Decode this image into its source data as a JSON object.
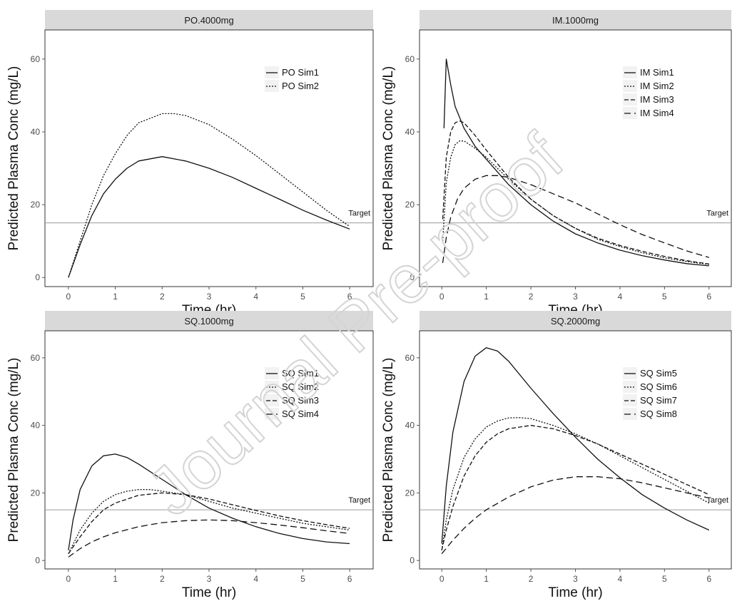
{
  "chart_data": [
    {
      "type": "line",
      "panel_title": "PO.4000mg",
      "xlabel": "Time (hr)",
      "ylabel": "Predicted Plasma Conc (mg/L)",
      "xlim": [
        -0.5,
        6.5
      ],
      "ylim": [
        -2.5,
        68
      ],
      "xticks": [
        0,
        1,
        2,
        3,
        4,
        5,
        6
      ],
      "yticks": [
        0,
        20,
        40,
        60
      ],
      "reference_line": {
        "value": 15,
        "label": "Target"
      },
      "legend_position": "right",
      "series": [
        {
          "name": "PO Sim1",
          "dash": "solid",
          "x": [
            0,
            0.25,
            0.5,
            0.75,
            1,
            1.25,
            1.5,
            2,
            2.5,
            3,
            3.5,
            4,
            4.5,
            5,
            5.5,
            6
          ],
          "y": [
            0,
            9,
            17,
            23,
            27,
            30,
            32,
            33.2,
            32,
            30,
            27.5,
            24.5,
            21.5,
            18.5,
            15.8,
            13.3
          ]
        },
        {
          "name": "PO Sim2",
          "dash": "dotted",
          "x": [
            0,
            0.25,
            0.5,
            0.75,
            1,
            1.25,
            1.5,
            2,
            2.25,
            2.5,
            3,
            3.5,
            4,
            4.5,
            5,
            5.5,
            6
          ],
          "y": [
            0,
            10,
            20,
            28,
            34,
            39,
            42.5,
            45,
            45,
            44.5,
            42,
            38,
            33.5,
            28.5,
            23.5,
            18.5,
            14
          ]
        }
      ]
    },
    {
      "type": "line",
      "panel_title": "IM.1000mg",
      "xlabel": "Time (hr)",
      "ylabel": "Predicted Plasma Conc (mg/L)",
      "xlim": [
        -0.5,
        6.5
      ],
      "ylim": [
        -2.5,
        68
      ],
      "xticks": [
        0,
        1,
        2,
        3,
        4,
        5,
        6
      ],
      "yticks": [
        0,
        20,
        40,
        60
      ],
      "reference_line": {
        "value": 15,
        "label": "Target"
      },
      "legend_position": "right",
      "series": [
        {
          "name": "IM Sim1",
          "dash": "solid",
          "x": [
            0.05,
            0.1,
            0.2,
            0.3,
            0.5,
            0.75,
            1,
            1.5,
            2,
            2.5,
            3,
            3.5,
            4,
            4.5,
            5,
            5.5,
            6
          ],
          "y": [
            41,
            60,
            53,
            47,
            41,
            36,
            32.5,
            25.5,
            20,
            15.5,
            12,
            9.5,
            7.5,
            6,
            4.8,
            3.8,
            3.2
          ]
        },
        {
          "name": "IM Sim2",
          "dash": "dotted",
          "x": [
            0.02,
            0.1,
            0.2,
            0.3,
            0.4,
            0.5,
            0.75,
            1,
            1.5,
            2,
            2.5,
            3,
            3.5,
            4,
            4.5,
            5,
            5.5,
            6
          ],
          "y": [
            10,
            26,
            33,
            36.5,
            37.5,
            37.5,
            35.5,
            33,
            27,
            21.5,
            17,
            13.5,
            10.5,
            8.5,
            6.8,
            5.4,
            4.4,
            3.6
          ]
        },
        {
          "name": "IM Sim3",
          "dash": "dashed",
          "x": [
            0.02,
            0.1,
            0.2,
            0.3,
            0.4,
            0.5,
            0.75,
            1,
            1.5,
            2,
            2.5,
            3,
            3.5,
            4,
            4.5,
            5,
            5.5,
            6
          ],
          "y": [
            16,
            33,
            40,
            42.5,
            43,
            42.5,
            39,
            35,
            27.5,
            21.5,
            17,
            13.5,
            10.8,
            8.8,
            7.2,
            5.8,
            4.6,
            3.7
          ]
        },
        {
          "name": "IM Sim4",
          "dash": "longdash",
          "x": [
            0.02,
            0.1,
            0.2,
            0.35,
            0.5,
            0.75,
            1,
            1.25,
            1.5,
            2,
            2.5,
            3,
            3.5,
            4,
            4.5,
            5,
            5.5,
            6
          ],
          "y": [
            4,
            11,
            16.5,
            21.5,
            24.5,
            27,
            28,
            28,
            27.5,
            25.5,
            23,
            20.5,
            17.5,
            14.5,
            11.8,
            9.5,
            7.3,
            5.5
          ]
        }
      ]
    },
    {
      "type": "line",
      "panel_title": "SQ.1000mg",
      "xlabel": "Time (hr)",
      "ylabel": "Predicted Plasma Conc (mg/L)",
      "xlim": [
        -0.5,
        6.5
      ],
      "ylim": [
        -2.5,
        68
      ],
      "xticks": [
        0,
        1,
        2,
        3,
        4,
        5,
        6
      ],
      "yticks": [
        0,
        20,
        40,
        60
      ],
      "reference_line": {
        "value": 15,
        "label": "Target"
      },
      "legend_position": "right",
      "series": [
        {
          "name": "SQ Sim1",
          "dash": "solid",
          "x": [
            0,
            0.1,
            0.25,
            0.5,
            0.75,
            1,
            1.25,
            1.5,
            2,
            2.5,
            3,
            3.5,
            4,
            4.5,
            5,
            5.5,
            6
          ],
          "y": [
            3,
            12,
            21,
            28,
            31,
            31.5,
            30.5,
            28.5,
            24,
            19.5,
            15.5,
            12.5,
            10,
            8,
            6.5,
            5.5,
            5
          ]
        },
        {
          "name": "SQ Sim2",
          "dash": "dotted",
          "x": [
            0,
            0.25,
            0.5,
            0.75,
            1,
            1.25,
            1.5,
            1.75,
            2,
            2.5,
            3,
            3.5,
            4,
            4.5,
            5,
            5.5,
            6
          ],
          "y": [
            2,
            9,
            14,
            17.5,
            19.5,
            20.5,
            21,
            21,
            20.5,
            19.5,
            17.5,
            15.5,
            14,
            12.5,
            11,
            10,
            9
          ]
        },
        {
          "name": "SQ Sim3",
          "dash": "dashed",
          "x": [
            0,
            0.25,
            0.5,
            0.75,
            1,
            1.5,
            2,
            2.5,
            3,
            3.5,
            4,
            4.5,
            5,
            5.5,
            6
          ],
          "y": [
            2,
            7,
            11.5,
            15,
            17,
            19.3,
            20,
            19.5,
            18.2,
            16.5,
            14.8,
            13.2,
            11.8,
            10.6,
            9.5
          ]
        },
        {
          "name": "SQ Sim4",
          "dash": "longdash",
          "x": [
            0,
            0.25,
            0.5,
            0.75,
            1,
            1.5,
            2,
            2.5,
            3,
            3.5,
            4,
            4.5,
            5,
            5.5,
            6
          ],
          "y": [
            1,
            3.5,
            5.5,
            7,
            8.2,
            10,
            11.2,
            11.8,
            12,
            11.8,
            11.2,
            10.5,
            9.7,
            8.8,
            8
          ]
        }
      ]
    },
    {
      "type": "line",
      "panel_title": "SQ.2000mg",
      "xlabel": "Time (hr)",
      "ylabel": "Predicted Plasma Conc (mg/L)",
      "xlim": [
        -0.5,
        6.5
      ],
      "ylim": [
        -2.5,
        68
      ],
      "xticks": [
        0,
        1,
        2,
        3,
        4,
        5,
        6
      ],
      "yticks": [
        0,
        20,
        40,
        60
      ],
      "reference_line": {
        "value": 15,
        "label": "Target"
      },
      "legend_position": "right",
      "series": [
        {
          "name": "SQ Sim5",
          "dash": "solid",
          "x": [
            0,
            0.1,
            0.25,
            0.5,
            0.75,
            1,
            1.25,
            1.5,
            2,
            2.5,
            3,
            3.5,
            4,
            4.5,
            5,
            5.5,
            6
          ],
          "y": [
            5,
            22,
            38,
            53,
            60.5,
            63,
            62,
            59,
            51,
            43.5,
            36.5,
            30,
            24.5,
            19.5,
            15.5,
            12,
            9
          ]
        },
        {
          "name": "SQ Sim6",
          "dash": "dotted",
          "x": [
            0,
            0.1,
            0.25,
            0.5,
            0.75,
            1,
            1.25,
            1.5,
            1.75,
            2,
            2.5,
            3,
            3.5,
            4,
            4.5,
            5,
            5.5,
            6
          ],
          "y": [
            3,
            12,
            21,
            30.5,
            36,
            39.5,
            41.3,
            42.2,
            42.3,
            42,
            40,
            37.5,
            34.5,
            31,
            27.5,
            24,
            20.5,
            17
          ]
        },
        {
          "name": "SQ Sim7",
          "dash": "dashed",
          "x": [
            0,
            0.1,
            0.25,
            0.5,
            0.75,
            1,
            1.25,
            1.5,
            2,
            2.5,
            3,
            3.5,
            4,
            4.5,
            5,
            5.5,
            6
          ],
          "y": [
            3,
            9,
            16,
            25,
            31,
            35,
            37.5,
            39,
            40,
            39,
            37,
            34.5,
            31.5,
            28.5,
            25.5,
            22.5,
            19.5
          ]
        },
        {
          "name": "SQ Sim8",
          "dash": "longdash",
          "x": [
            0,
            0.25,
            0.5,
            0.75,
            1,
            1.5,
            2,
            2.5,
            3,
            3.5,
            4,
            4.5,
            5,
            5.5,
            6
          ],
          "y": [
            2,
            6,
            9.5,
            12.5,
            15,
            18.8,
            21.8,
            23.8,
            24.8,
            24.8,
            24.2,
            23,
            21.5,
            20,
            18.5
          ]
        }
      ]
    }
  ],
  "watermark": {
    "text": "Journal Pre-proof"
  }
}
